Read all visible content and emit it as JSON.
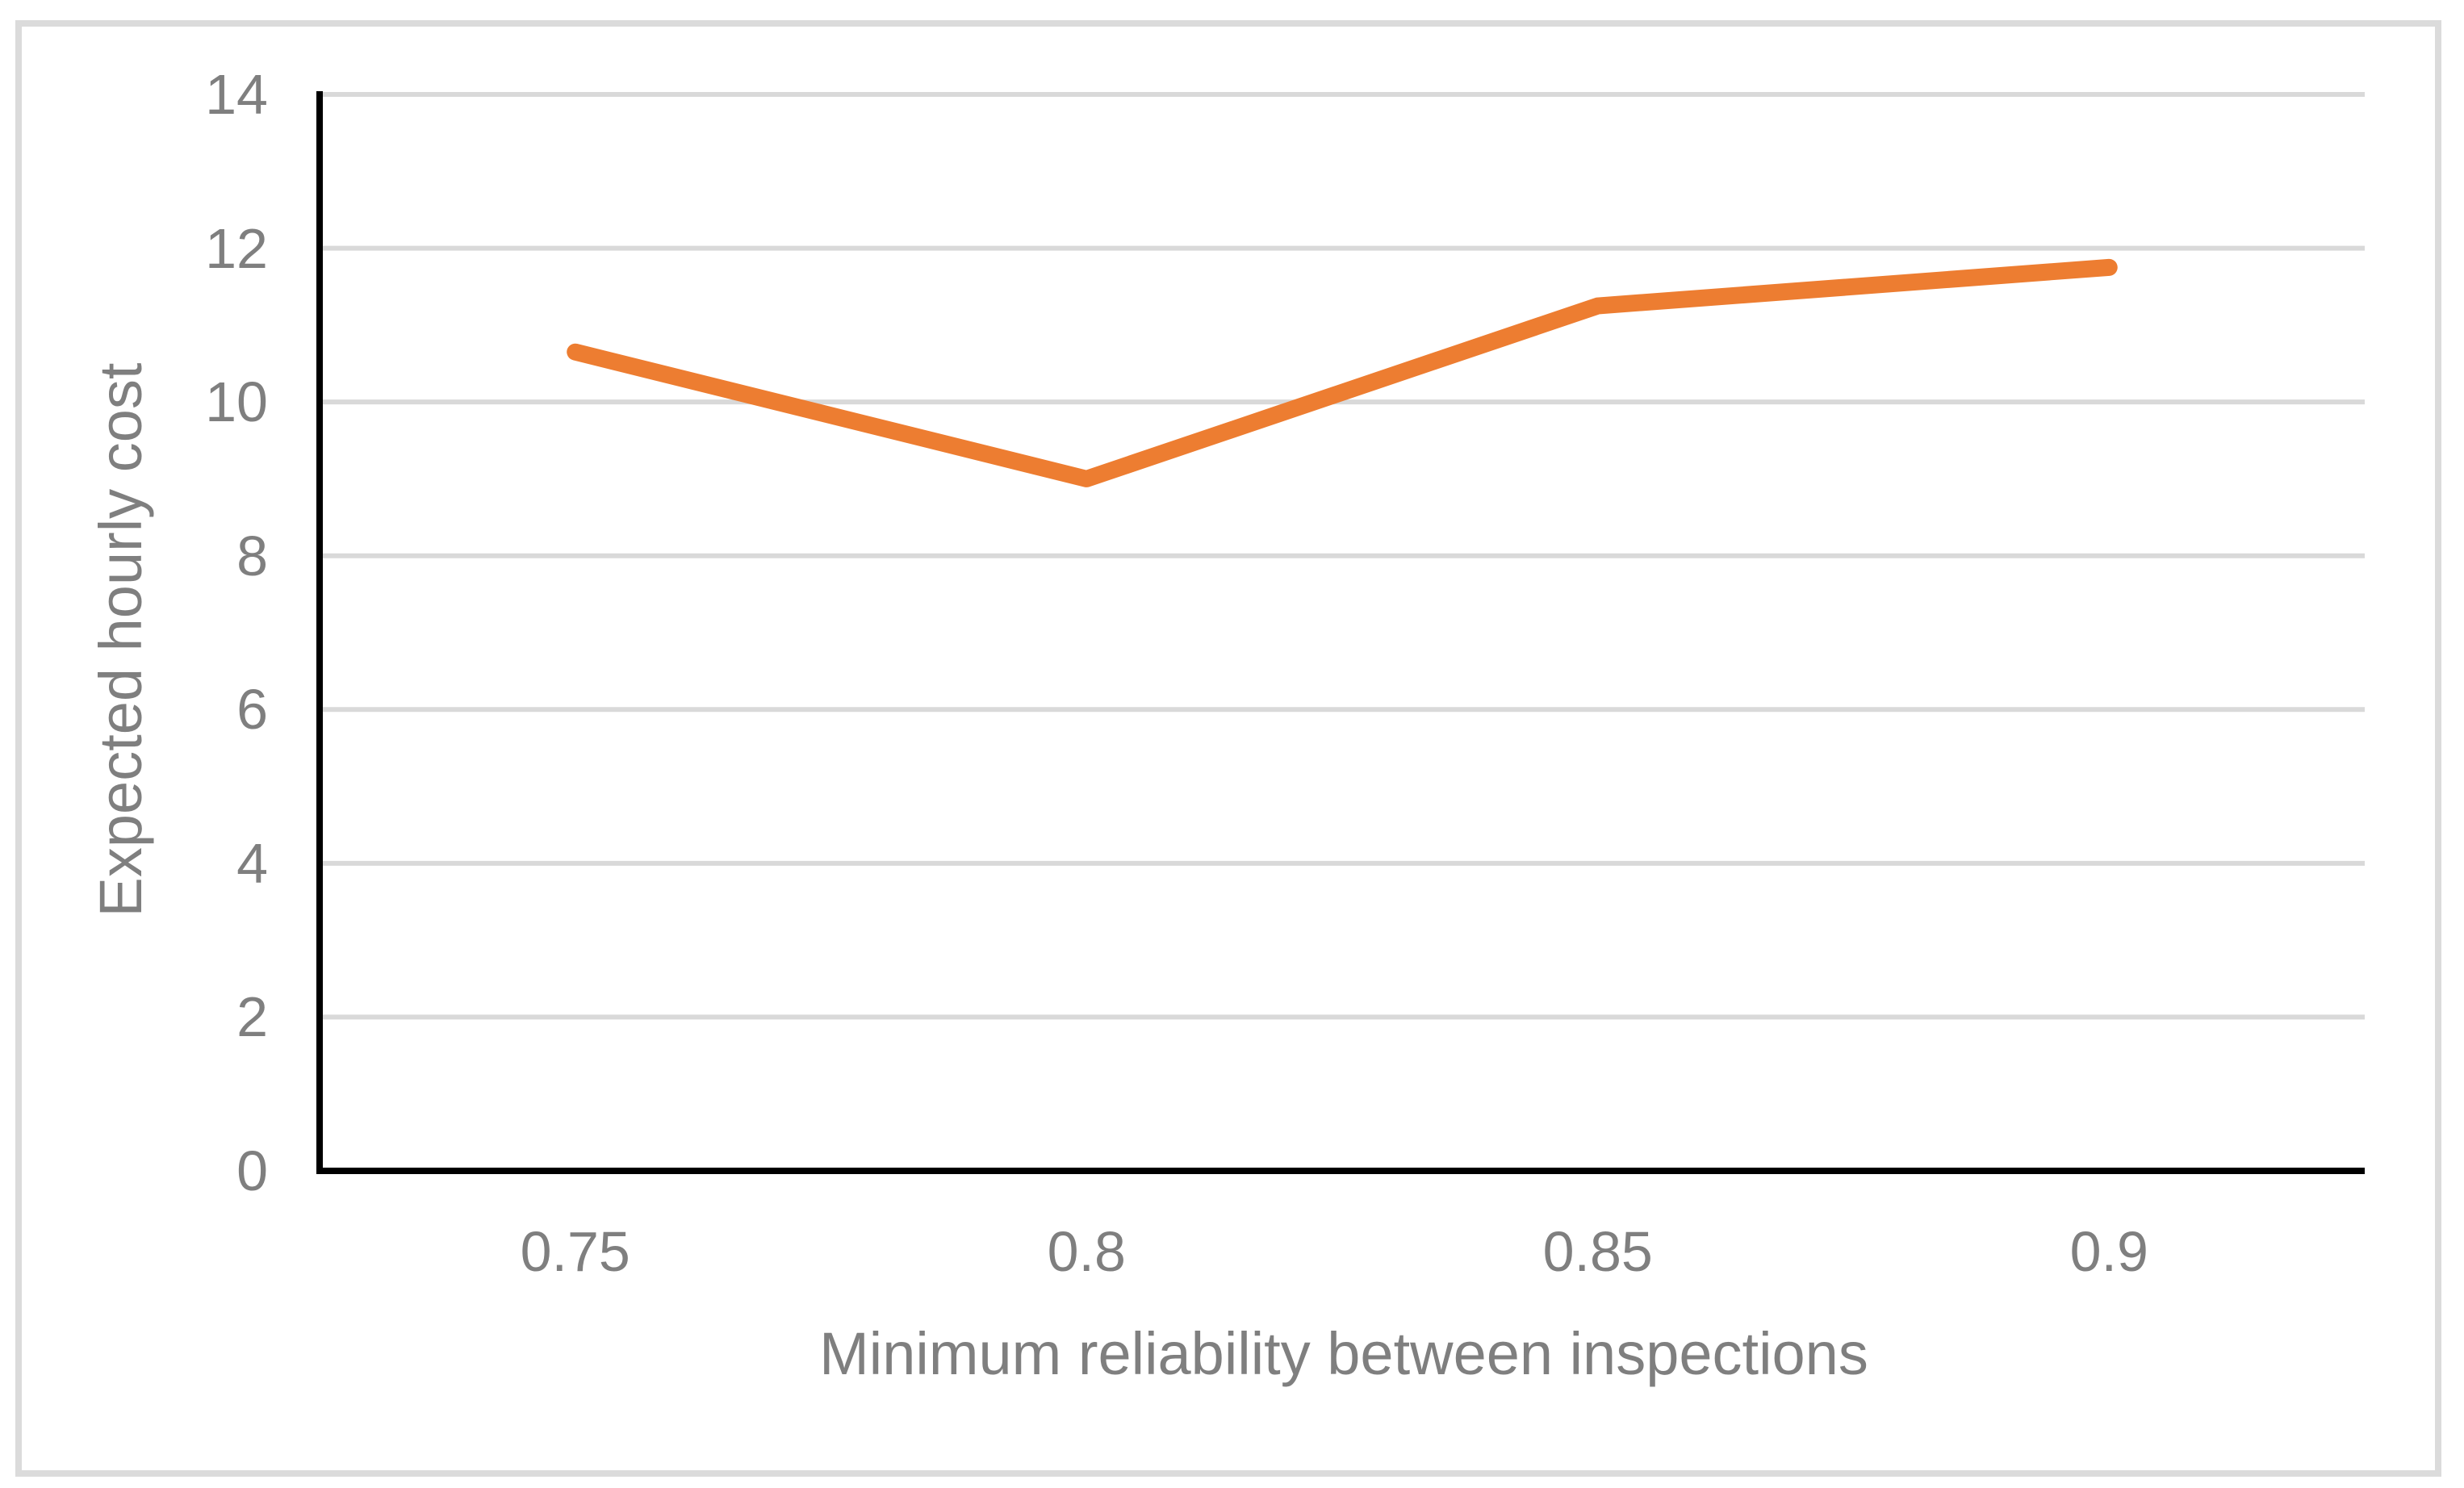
{
  "chart_data": {
    "type": "line",
    "title": "",
    "categories": [
      "0.75",
      "0.8",
      "0.85",
      "0.9"
    ],
    "values": [
      10.65,
      9,
      11.25,
      11.75
    ],
    "xlabel": "Minimum reliability between inspections",
    "ylabel": "Expected hourly cost",
    "ylim": [
      0,
      14
    ],
    "ytick_interval": 2,
    "yticks": [
      "0",
      "2",
      "4",
      "6",
      "8",
      "10",
      "12",
      "14"
    ],
    "grid": true,
    "legend": false
  },
  "style": {
    "line_color": "#ED7D31",
    "gridline_color": "#D9D9D9",
    "axis_color": "#000000",
    "label_color": "#7F7F7F",
    "frame_border_color": "#DBDBDB",
    "background": "#FFFFFF"
  }
}
